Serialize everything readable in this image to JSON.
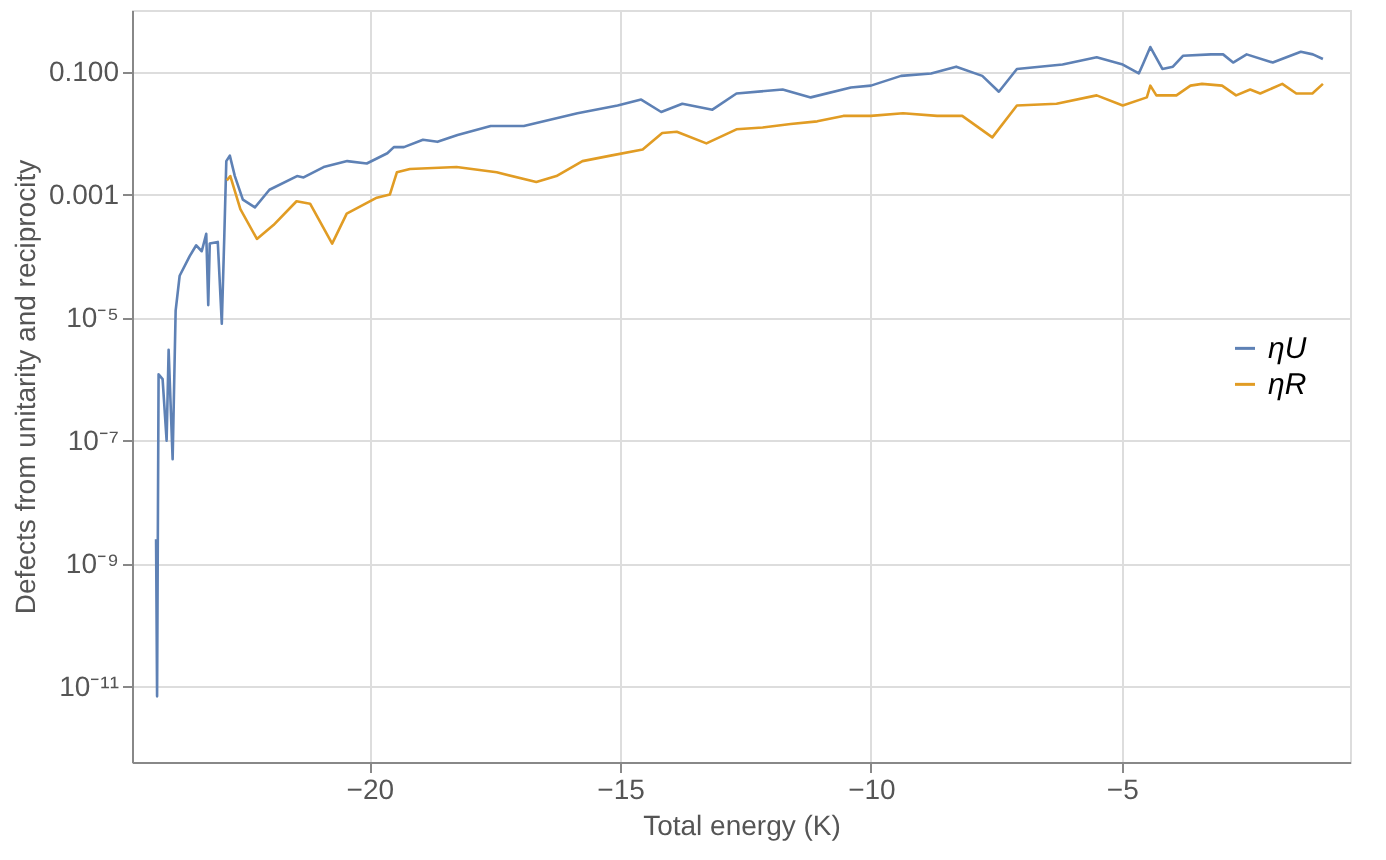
{
  "chart_data": {
    "type": "line",
    "xlabel": "Total energy (K)",
    "ylabel": "Defects from unitarity and reciprocity",
    "log": "y",
    "grid": true,
    "legend": "right",
    "marker": "none",
    "line_style": "solid",
    "xlim": [
      -24.73,
      -0.45
    ],
    "xticks": [
      -20,
      -15,
      -10,
      -5
    ],
    "ylim": [
      6e-13,
      1
    ],
    "yticks": [
      {
        "value": 1e-11,
        "label": "10⁻¹¹"
      },
      {
        "value": 1e-09,
        "label": "10⁻⁹"
      },
      {
        "value": 1e-07,
        "label": "10⁻⁷"
      },
      {
        "value": 1e-05,
        "label": "10⁻⁵"
      },
      {
        "value": 0.001,
        "label": "0.001"
      },
      {
        "value": 0.1,
        "label": "0.100"
      }
    ],
    "series": [
      {
        "name": "ηU",
        "color": "#5e81b5",
        "x": [
          -24.25,
          -24.23,
          -24.2,
          -24.12,
          -24.04,
          -24.0,
          -23.92,
          -23.86,
          -23.78,
          -23.58,
          -23.45,
          -23.34,
          -23.25,
          -23.21,
          -23.18,
          -23.02,
          -22.94,
          -22.89,
          -22.85,
          -22.78,
          -22.68,
          -22.52,
          -22.28,
          -21.99,
          -21.44,
          -21.31,
          -20.91,
          -20.44,
          -20.05,
          -19.64,
          -19.51,
          -19.31,
          -18.93,
          -18.64,
          -18.24,
          -17.58,
          -16.92,
          -15.85,
          -15.05,
          -14.58,
          -14.18,
          -13.76,
          -13.16,
          -12.68,
          -11.76,
          -11.2,
          -10.4,
          -10.0,
          -9.4,
          -8.8,
          -8.3,
          -7.78,
          -7.45,
          -7.09,
          -6.18,
          -5.5,
          -4.98,
          -4.66,
          -4.58,
          -4.43,
          -4.19,
          -3.98,
          -3.78,
          -3.22,
          -2.98,
          -2.78,
          -2.51,
          -1.99,
          -1.43,
          -1.19,
          -0.99
        ],
        "values": [
          2.5e-09,
          7e-12,
          1.2e-06,
          1e-06,
          1e-07,
          3e-06,
          5e-08,
          1.3e-05,
          4.8e-05,
          0.0001,
          0.00015,
          0.00012,
          0.00023,
          1.6e-05,
          0.00016,
          0.00017,
          8e-06,
          0.00021,
          0.0035,
          0.0043,
          0.002,
          0.00083,
          0.00062,
          0.0012,
          0.002,
          0.0019,
          0.0028,
          0.0035,
          0.0032,
          0.0047,
          0.0059,
          0.0059,
          0.0078,
          0.0072,
          0.0093,
          0.013,
          0.013,
          0.021,
          0.028,
          0.035,
          0.022,
          0.03,
          0.024,
          0.044,
          0.051,
          0.038,
          0.055,
          0.059,
          0.085,
          0.093,
          0.12,
          0.085,
          0.047,
          0.11,
          0.13,
          0.17,
          0.13,
          0.093,
          0.13,
          0.25,
          0.11,
          0.12,
          0.18,
          0.19,
          0.19,
          0.14,
          0.19,
          0.14,
          0.21,
          0.19,
          0.16
        ]
      },
      {
        "name": "ηR",
        "color": "#e19c24",
        "x": [
          -22.84,
          -22.77,
          -22.57,
          -22.24,
          -21.91,
          -21.45,
          -21.18,
          -20.74,
          -20.45,
          -19.85,
          -19.59,
          -19.45,
          -19.19,
          -18.26,
          -17.46,
          -16.67,
          -16.27,
          -15.75,
          -15.19,
          -14.55,
          -14.16,
          -13.87,
          -13.28,
          -12.68,
          -12.16,
          -11.6,
          -11.07,
          -10.55,
          -10.0,
          -9.36,
          -8.68,
          -8.18,
          -7.58,
          -7.09,
          -6.3,
          -5.5,
          -4.98,
          -4.5,
          -4.43,
          -4.31,
          -3.91,
          -3.63,
          -3.4,
          -3.0,
          -2.72,
          -2.44,
          -2.24,
          -1.8,
          -1.52,
          -1.2,
          -0.99
        ],
        "values": [
          0.0017,
          0.002,
          0.00058,
          0.00019,
          0.00032,
          0.00078,
          0.00071,
          0.00016,
          0.00049,
          0.00089,
          0.001,
          0.0023,
          0.0026,
          0.0028,
          0.0023,
          0.0016,
          0.002,
          0.0035,
          0.0043,
          0.0054,
          0.01,
          0.0105,
          0.0068,
          0.0115,
          0.0123,
          0.014,
          0.0155,
          0.019,
          0.019,
          0.021,
          0.019,
          0.019,
          0.0085,
          0.028,
          0.03,
          0.041,
          0.028,
          0.038,
          0.059,
          0.041,
          0.041,
          0.059,
          0.063,
          0.059,
          0.041,
          0.051,
          0.044,
          0.063,
          0.044,
          0.044,
          0.063
        ]
      }
    ]
  }
}
